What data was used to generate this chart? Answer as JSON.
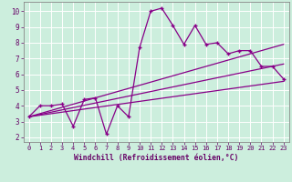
{
  "x_data": [
    0,
    1,
    2,
    3,
    4,
    5,
    6,
    7,
    8,
    9,
    10,
    11,
    12,
    13,
    14,
    15,
    16,
    17,
    18,
    19,
    20,
    21,
    22,
    23
  ],
  "y_main": [
    3.3,
    4.0,
    4.0,
    4.1,
    2.7,
    4.4,
    4.5,
    2.2,
    4.0,
    3.3,
    7.7,
    10.0,
    10.2,
    9.1,
    7.9,
    9.1,
    7.9,
    8.0,
    7.3,
    7.5,
    7.5,
    6.5,
    6.5,
    5.7
  ],
  "line1_start": 3.3,
  "line1_end": 7.9,
  "line2_start": 3.3,
  "line2_end": 6.65,
  "line3_start": 3.3,
  "line3_end": 5.55,
  "line_color": "#880088",
  "bg_color": "#cceedd",
  "grid_color": "#aaddcc",
  "yticks": [
    2,
    3,
    4,
    5,
    6,
    7,
    8,
    9,
    10
  ],
  "xlabel": "Windchill (Refroidissement éolien,°C)",
  "xlim": [
    -0.5,
    23.5
  ],
  "ylim": [
    1.7,
    10.6
  ]
}
